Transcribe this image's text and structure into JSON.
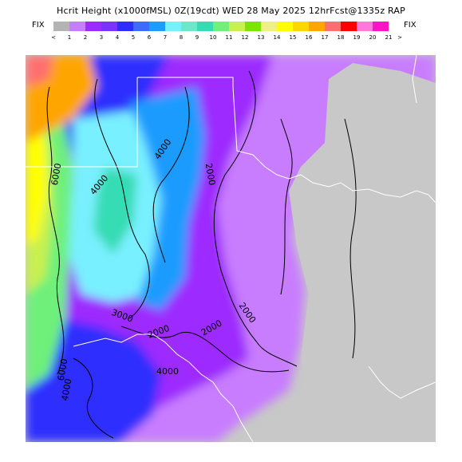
{
  "title": "Hcrit Height (x1000fMSL) 0Z(19cdt) WED 28 May 2025 12hrFcst@1335z RAP",
  "legend": {
    "fix_left": "FIX",
    "fix_right": "FIX",
    "below_label": "<",
    "above_label": ">",
    "bins": [
      {
        "label": "1",
        "color": "#b4b4b4"
      },
      {
        "label": "2",
        "color": "#c87dff"
      },
      {
        "label": "3",
        "color": "#9d2bff"
      },
      {
        "label": "4",
        "color": "#7a32ff"
      },
      {
        "label": "5",
        "color": "#2d2dff"
      },
      {
        "label": "6",
        "color": "#3b6cff"
      },
      {
        "label": "7",
        "color": "#1e9bff"
      },
      {
        "label": "8",
        "color": "#79f0ff"
      },
      {
        "label": "9",
        "color": "#6ee6c8"
      },
      {
        "label": "10",
        "color": "#34dcb4"
      },
      {
        "label": "11",
        "color": "#6ef07a"
      },
      {
        "label": "12",
        "color": "#c8f050"
      },
      {
        "label": "13",
        "color": "#78e600"
      },
      {
        "label": "14",
        "color": "#f0f082"
      },
      {
        "label": "15",
        "color": "#ffff00"
      },
      {
        "label": "16",
        "color": "#ffd700"
      },
      {
        "label": "17",
        "color": "#ffa500"
      },
      {
        "label": "18",
        "color": "#ff6e6e"
      },
      {
        "label": "19",
        "color": "#ff0000"
      },
      {
        "label": "20",
        "color": "#ff78dc"
      },
      {
        "label": "21",
        "color": "#ff14c8"
      }
    ]
  },
  "map": {
    "contour_labels": [
      "6000",
      "4000",
      "4000",
      "2000",
      "2000",
      "2000",
      "2000",
      "4000",
      "3000",
      "4000",
      "6000"
    ]
  }
}
